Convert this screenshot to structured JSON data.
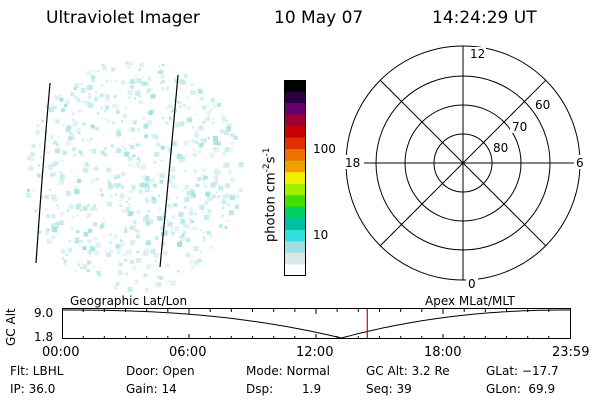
{
  "header": {
    "title": "Ultraviolet Imager",
    "date": "10 May 07",
    "time": "14:24:29 UT"
  },
  "colorbar": {
    "unit_label": "photon cm",
    "unit_sup1": "-2",
    "unit_mid": "s",
    "unit_sup2": "-1",
    "tick_100": "100",
    "tick_10": "10",
    "colors": [
      "#000000",
      "#2b0040",
      "#6a006a",
      "#a00030",
      "#c80000",
      "#e03000",
      "#f07000",
      "#f0a000",
      "#f0f000",
      "#a0f000",
      "#40e000",
      "#00d060",
      "#00c0a0",
      "#30e0e0",
      "#a0e0e0",
      "#d8e8e8",
      "#ffffff"
    ]
  },
  "polar_plot": {
    "mlt_12": "12",
    "mlt_18": "18",
    "mlt_6": "6",
    "mlt_0": "0",
    "lat_60": "60",
    "lat_70": "70",
    "lat_80": "80"
  },
  "orbit_panel": {
    "left_label": "Geographic Lat/Lon",
    "right_label": "Apex MLat/MLT",
    "ylabel": "GC Alt",
    "y_top": "9.0",
    "y_bottom": "1.8",
    "x_ticks": [
      "00:00",
      "06:00",
      "12:00",
      "18:00",
      "23:59"
    ],
    "current_time_fraction": 0.601,
    "marker_color": "#e00000"
  },
  "status": {
    "filter": "Flt: LBHL",
    "ip": "IP: 36.0",
    "door": "Door: Open",
    "gain": "Gain: 14",
    "mode": "Mode: Normal",
    "dsp_label": "Dsp:",
    "dsp_value": "1.9",
    "gc_alt": "GC Alt: 3.2 Re",
    "seq": "Seq: 39",
    "glat": "GLat: −17.7",
    "glon": "GLon:  69.9"
  }
}
